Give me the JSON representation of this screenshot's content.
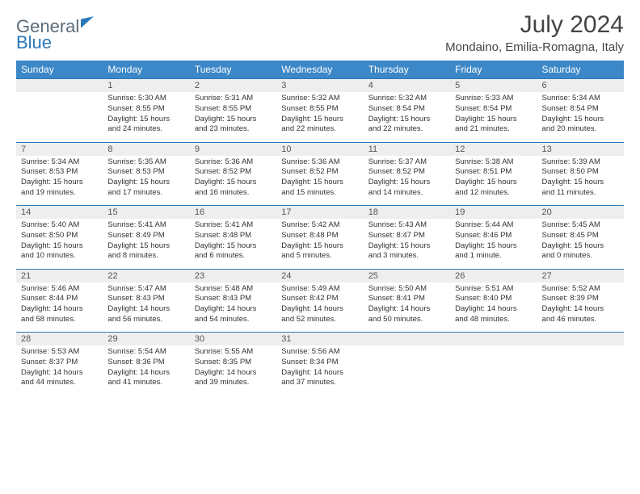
{
  "brand": {
    "part1": "General",
    "part2": "Blue"
  },
  "title": "July 2024",
  "location": "Mondaino, Emilia-Romagna, Italy",
  "colors": {
    "header_bg": "#3c87c7",
    "header_text": "#ffffff",
    "daynum_bg": "#eeeeee",
    "row_border": "#2a78b8",
    "body_text": "#333333",
    "logo_gray": "#5a6b7a",
    "logo_blue": "#2a78b8"
  },
  "weekdays": [
    "Sunday",
    "Monday",
    "Tuesday",
    "Wednesday",
    "Thursday",
    "Friday",
    "Saturday"
  ],
  "weeks": [
    [
      {
        "day": "",
        "sunrise": "",
        "sunset": "",
        "daylight1": "",
        "daylight2": ""
      },
      {
        "day": "1",
        "sunrise": "Sunrise: 5:30 AM",
        "sunset": "Sunset: 8:55 PM",
        "daylight1": "Daylight: 15 hours",
        "daylight2": "and 24 minutes."
      },
      {
        "day": "2",
        "sunrise": "Sunrise: 5:31 AM",
        "sunset": "Sunset: 8:55 PM",
        "daylight1": "Daylight: 15 hours",
        "daylight2": "and 23 minutes."
      },
      {
        "day": "3",
        "sunrise": "Sunrise: 5:32 AM",
        "sunset": "Sunset: 8:55 PM",
        "daylight1": "Daylight: 15 hours",
        "daylight2": "and 22 minutes."
      },
      {
        "day": "4",
        "sunrise": "Sunrise: 5:32 AM",
        "sunset": "Sunset: 8:54 PM",
        "daylight1": "Daylight: 15 hours",
        "daylight2": "and 22 minutes."
      },
      {
        "day": "5",
        "sunrise": "Sunrise: 5:33 AM",
        "sunset": "Sunset: 8:54 PM",
        "daylight1": "Daylight: 15 hours",
        "daylight2": "and 21 minutes."
      },
      {
        "day": "6",
        "sunrise": "Sunrise: 5:34 AM",
        "sunset": "Sunset: 8:54 PM",
        "daylight1": "Daylight: 15 hours",
        "daylight2": "and 20 minutes."
      }
    ],
    [
      {
        "day": "7",
        "sunrise": "Sunrise: 5:34 AM",
        "sunset": "Sunset: 8:53 PM",
        "daylight1": "Daylight: 15 hours",
        "daylight2": "and 19 minutes."
      },
      {
        "day": "8",
        "sunrise": "Sunrise: 5:35 AM",
        "sunset": "Sunset: 8:53 PM",
        "daylight1": "Daylight: 15 hours",
        "daylight2": "and 17 minutes."
      },
      {
        "day": "9",
        "sunrise": "Sunrise: 5:36 AM",
        "sunset": "Sunset: 8:52 PM",
        "daylight1": "Daylight: 15 hours",
        "daylight2": "and 16 minutes."
      },
      {
        "day": "10",
        "sunrise": "Sunrise: 5:36 AM",
        "sunset": "Sunset: 8:52 PM",
        "daylight1": "Daylight: 15 hours",
        "daylight2": "and 15 minutes."
      },
      {
        "day": "11",
        "sunrise": "Sunrise: 5:37 AM",
        "sunset": "Sunset: 8:52 PM",
        "daylight1": "Daylight: 15 hours",
        "daylight2": "and 14 minutes."
      },
      {
        "day": "12",
        "sunrise": "Sunrise: 5:38 AM",
        "sunset": "Sunset: 8:51 PM",
        "daylight1": "Daylight: 15 hours",
        "daylight2": "and 12 minutes."
      },
      {
        "day": "13",
        "sunrise": "Sunrise: 5:39 AM",
        "sunset": "Sunset: 8:50 PM",
        "daylight1": "Daylight: 15 hours",
        "daylight2": "and 11 minutes."
      }
    ],
    [
      {
        "day": "14",
        "sunrise": "Sunrise: 5:40 AM",
        "sunset": "Sunset: 8:50 PM",
        "daylight1": "Daylight: 15 hours",
        "daylight2": "and 10 minutes."
      },
      {
        "day": "15",
        "sunrise": "Sunrise: 5:41 AM",
        "sunset": "Sunset: 8:49 PM",
        "daylight1": "Daylight: 15 hours",
        "daylight2": "and 8 minutes."
      },
      {
        "day": "16",
        "sunrise": "Sunrise: 5:41 AM",
        "sunset": "Sunset: 8:48 PM",
        "daylight1": "Daylight: 15 hours",
        "daylight2": "and 6 minutes."
      },
      {
        "day": "17",
        "sunrise": "Sunrise: 5:42 AM",
        "sunset": "Sunset: 8:48 PM",
        "daylight1": "Daylight: 15 hours",
        "daylight2": "and 5 minutes."
      },
      {
        "day": "18",
        "sunrise": "Sunrise: 5:43 AM",
        "sunset": "Sunset: 8:47 PM",
        "daylight1": "Daylight: 15 hours",
        "daylight2": "and 3 minutes."
      },
      {
        "day": "19",
        "sunrise": "Sunrise: 5:44 AM",
        "sunset": "Sunset: 8:46 PM",
        "daylight1": "Daylight: 15 hours",
        "daylight2": "and 1 minute."
      },
      {
        "day": "20",
        "sunrise": "Sunrise: 5:45 AM",
        "sunset": "Sunset: 8:45 PM",
        "daylight1": "Daylight: 15 hours",
        "daylight2": "and 0 minutes."
      }
    ],
    [
      {
        "day": "21",
        "sunrise": "Sunrise: 5:46 AM",
        "sunset": "Sunset: 8:44 PM",
        "daylight1": "Daylight: 14 hours",
        "daylight2": "and 58 minutes."
      },
      {
        "day": "22",
        "sunrise": "Sunrise: 5:47 AM",
        "sunset": "Sunset: 8:43 PM",
        "daylight1": "Daylight: 14 hours",
        "daylight2": "and 56 minutes."
      },
      {
        "day": "23",
        "sunrise": "Sunrise: 5:48 AM",
        "sunset": "Sunset: 8:43 PM",
        "daylight1": "Daylight: 14 hours",
        "daylight2": "and 54 minutes."
      },
      {
        "day": "24",
        "sunrise": "Sunrise: 5:49 AM",
        "sunset": "Sunset: 8:42 PM",
        "daylight1": "Daylight: 14 hours",
        "daylight2": "and 52 minutes."
      },
      {
        "day": "25",
        "sunrise": "Sunrise: 5:50 AM",
        "sunset": "Sunset: 8:41 PM",
        "daylight1": "Daylight: 14 hours",
        "daylight2": "and 50 minutes."
      },
      {
        "day": "26",
        "sunrise": "Sunrise: 5:51 AM",
        "sunset": "Sunset: 8:40 PM",
        "daylight1": "Daylight: 14 hours",
        "daylight2": "and 48 minutes."
      },
      {
        "day": "27",
        "sunrise": "Sunrise: 5:52 AM",
        "sunset": "Sunset: 8:39 PM",
        "daylight1": "Daylight: 14 hours",
        "daylight2": "and 46 minutes."
      }
    ],
    [
      {
        "day": "28",
        "sunrise": "Sunrise: 5:53 AM",
        "sunset": "Sunset: 8:37 PM",
        "daylight1": "Daylight: 14 hours",
        "daylight2": "and 44 minutes."
      },
      {
        "day": "29",
        "sunrise": "Sunrise: 5:54 AM",
        "sunset": "Sunset: 8:36 PM",
        "daylight1": "Daylight: 14 hours",
        "daylight2": "and 41 minutes."
      },
      {
        "day": "30",
        "sunrise": "Sunrise: 5:55 AM",
        "sunset": "Sunset: 8:35 PM",
        "daylight1": "Daylight: 14 hours",
        "daylight2": "and 39 minutes."
      },
      {
        "day": "31",
        "sunrise": "Sunrise: 5:56 AM",
        "sunset": "Sunset: 8:34 PM",
        "daylight1": "Daylight: 14 hours",
        "daylight2": "and 37 minutes."
      },
      {
        "day": "",
        "sunrise": "",
        "sunset": "",
        "daylight1": "",
        "daylight2": ""
      },
      {
        "day": "",
        "sunrise": "",
        "sunset": "",
        "daylight1": "",
        "daylight2": ""
      },
      {
        "day": "",
        "sunrise": "",
        "sunset": "",
        "daylight1": "",
        "daylight2": ""
      }
    ]
  ]
}
